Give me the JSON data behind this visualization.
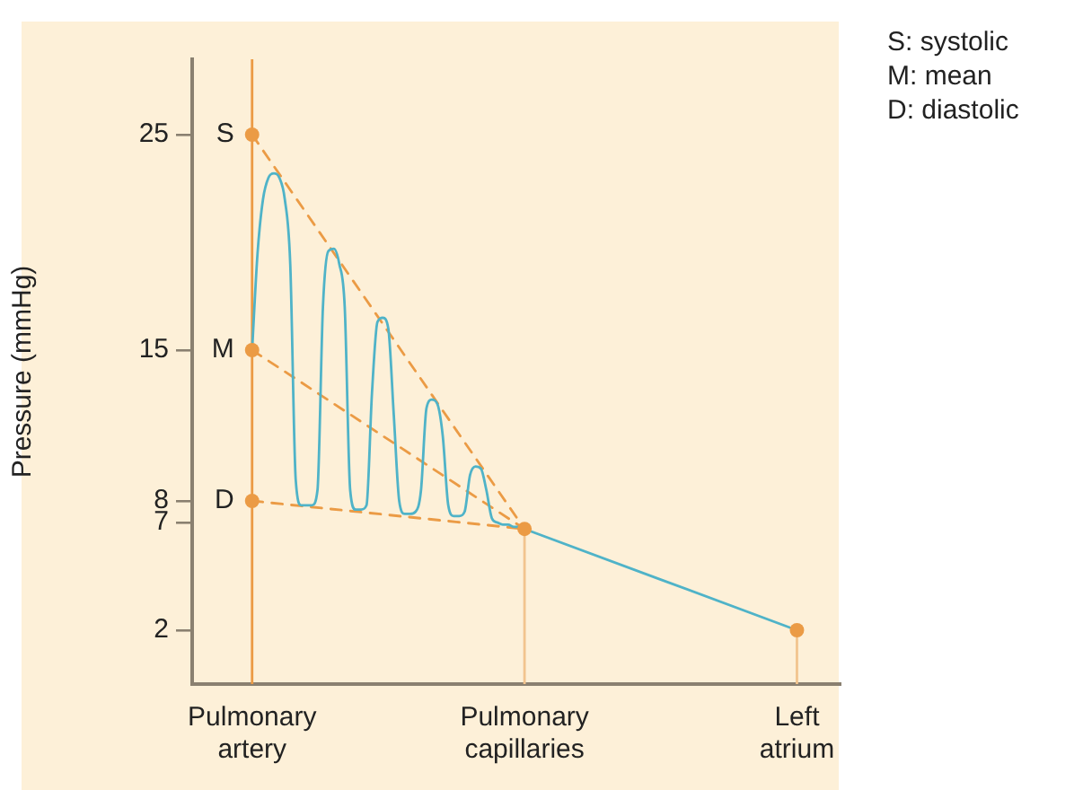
{
  "chart_data": {
    "type": "line",
    "ylabel": "Pressure (mmHg)",
    "categories": [
      "Pulmonary artery",
      null,
      null,
      null,
      null,
      null,
      null,
      null,
      null,
      null,
      null,
      null,
      null,
      null,
      null,
      null,
      null,
      null,
      null,
      null,
      null,
      null,
      null,
      null,
      null,
      null,
      null,
      null,
      null,
      null,
      null,
      null,
      null,
      null,
      null,
      null,
      null,
      null,
      null,
      null,
      null,
      null,
      null,
      null,
      null,
      null,
      null,
      null,
      null,
      null,
      "Pulmonary capillaries",
      null,
      null,
      null,
      null,
      null,
      null,
      null,
      null,
      null,
      null,
      null,
      null,
      null,
      null,
      null,
      null,
      null,
      null,
      null,
      null,
      null,
      null,
      null,
      null,
      null,
      null,
      null,
      null,
      null,
      null,
      null,
      null,
      null,
      null,
      null,
      null,
      null,
      null,
      null,
      null,
      null,
      null,
      null,
      null,
      null,
      null,
      null,
      null,
      null,
      "Left atrium"
    ],
    "ylim": [
      -0.5,
      28.5
    ],
    "yticks": [
      2,
      7,
      8,
      15,
      25
    ],
    "grid": false,
    "legend": false,
    "series": [
      {
        "type": "line",
        "color": "#eb9b45",
        "line_style": "dashed",
        "marker": "none",
        "values": [
          25,
          null,
          null,
          null,
          null,
          null,
          null,
          null,
          null,
          null,
          null,
          null,
          null,
          null,
          null,
          null,
          null,
          null,
          null,
          null,
          null,
          null,
          null,
          null,
          null,
          null,
          null,
          null,
          null,
          null,
          null,
          null,
          null,
          null,
          null,
          null,
          null,
          null,
          null,
          null,
          null,
          null,
          null,
          null,
          null,
          null,
          null,
          null,
          null,
          null,
          6.7,
          null,
          null,
          null,
          null,
          null,
          null,
          null,
          null,
          null,
          null,
          null,
          null,
          null,
          null,
          null,
          null,
          null,
          null,
          null,
          null,
          null,
          null,
          null,
          null,
          null,
          null,
          null,
          null,
          null,
          null,
          null,
          null,
          null,
          null,
          null,
          null,
          null,
          null,
          null,
          null,
          null,
          null,
          null,
          null,
          null,
          null,
          null,
          null,
          null,
          null
        ]
      },
      {
        "type": "line",
        "color": "#eb9b45",
        "line_style": "dashed",
        "marker": "none",
        "values": [
          15,
          null,
          null,
          null,
          null,
          null,
          null,
          null,
          null,
          null,
          null,
          null,
          null,
          null,
          null,
          null,
          null,
          null,
          null,
          null,
          null,
          null,
          null,
          null,
          null,
          null,
          null,
          null,
          null,
          null,
          null,
          null,
          null,
          null,
          null,
          null,
          null,
          null,
          null,
          null,
          null,
          null,
          null,
          null,
          null,
          null,
          null,
          null,
          null,
          null,
          6.7,
          null,
          null,
          null,
          null,
          null,
          null,
          null,
          null,
          null,
          null,
          null,
          null,
          null,
          null,
          null,
          null,
          null,
          null,
          null,
          null,
          null,
          null,
          null,
          null,
          null,
          null,
          null,
          null,
          null,
          null,
          null,
          null,
          null,
          null,
          null,
          null,
          null,
          null,
          null,
          null,
          null,
          null,
          null,
          null,
          null,
          null,
          null,
          null,
          null,
          null
        ]
      },
      {
        "type": "line",
        "color": "#eb9b45",
        "line_style": "dashed",
        "marker": "none",
        "values": [
          8,
          null,
          null,
          null,
          null,
          null,
          null,
          null,
          null,
          null,
          null,
          null,
          null,
          null,
          null,
          null,
          null,
          null,
          null,
          null,
          null,
          null,
          null,
          null,
          null,
          null,
          null,
          null,
          null,
          null,
          null,
          null,
          null,
          null,
          null,
          null,
          null,
          null,
          null,
          null,
          null,
          null,
          null,
          null,
          null,
          null,
          null,
          null,
          null,
          null,
          6.7,
          null,
          null,
          null,
          null,
          null,
          null,
          null,
          null,
          null,
          null,
          null,
          null,
          null,
          null,
          null,
          null,
          null,
          null,
          null,
          null,
          null,
          null,
          null,
          null,
          null,
          null,
          null,
          null,
          null,
          null,
          null,
          null,
          null,
          null,
          null,
          null,
          null,
          null,
          null,
          null,
          null,
          null,
          null,
          null,
          null,
          null,
          null,
          null,
          null,
          null
        ]
      },
      {
        "type": "line",
        "color": "#4fb3c8",
        "line_style": "solid",
        "marker": "none",
        "values": [
          15,
          19.5,
          22,
          23,
          23.2,
          23,
          22,
          19,
          9,
          7.8,
          7.8,
          7.8,
          8.5,
          17,
          19.6,
          19.7,
          19,
          17,
          8.5,
          7.6,
          7.6,
          7.8,
          13,
          16.3,
          16.5,
          16,
          12,
          8,
          7.4,
          7.4,
          7.5,
          8.5,
          12.3,
          12.7,
          12.5,
          11,
          7.8,
          7.3,
          7.3,
          7.5,
          9.2,
          9.6,
          9.5,
          8.5,
          7.2,
          7,
          6.9,
          6.9,
          6.8,
          6.8,
          6.7,
          null,
          null,
          null,
          null,
          null,
          null,
          null,
          null,
          null,
          null,
          null,
          null,
          null,
          null,
          null,
          null,
          null,
          null,
          null,
          null,
          null,
          null,
          null,
          null,
          null,
          null,
          null,
          null,
          null,
          null,
          null,
          null,
          null,
          null,
          null,
          null,
          null,
          null,
          null,
          null,
          null,
          null,
          null,
          null,
          null,
          null,
          null,
          null,
          null,
          null
        ]
      },
      {
        "type": "line",
        "color": "#4fb3c8",
        "line_style": "solid",
        "marker": "none",
        "values": [
          null,
          null,
          null,
          null,
          null,
          null,
          null,
          null,
          null,
          null,
          null,
          null,
          null,
          null,
          null,
          null,
          null,
          null,
          null,
          null,
          null,
          null,
          null,
          null,
          null,
          null,
          null,
          null,
          null,
          null,
          null,
          null,
          null,
          null,
          null,
          null,
          null,
          null,
          null,
          null,
          null,
          null,
          null,
          null,
          null,
          null,
          null,
          null,
          null,
          null,
          6.7,
          null,
          null,
          null,
          null,
          null,
          null,
          null,
          null,
          null,
          null,
          null,
          null,
          null,
          null,
          null,
          null,
          null,
          null,
          null,
          null,
          null,
          null,
          null,
          null,
          null,
          null,
          null,
          null,
          null,
          null,
          null,
          null,
          null,
          null,
          null,
          null,
          null,
          null,
          null,
          null,
          null,
          null,
          null,
          null,
          null,
          null,
          null,
          null,
          null,
          2
        ]
      },
      {
        "type": "line",
        "color": "#f2c48e",
        "line_style": "solid",
        "marker": "none",
        "x": [
          "Pulmonary capillaries",
          "Pulmonary capillaries"
        ],
        "values": [
          -0.5,
          6.7
        ]
      },
      {
        "type": "line",
        "color": "#f2c48e",
        "line_style": "solid",
        "marker": "none",
        "x": [
          "Left atrium",
          "Left atrium"
        ],
        "values": [
          -0.5,
          2
        ]
      },
      {
        "type": "scatter",
        "color": "#eb9b45",
        "marker": "circle",
        "x": [
          "Pulmonary artery",
          "Pulmonary artery",
          "Pulmonary artery",
          "Pulmonary capillaries",
          "Left atrium"
        ],
        "values": [
          25,
          15,
          8,
          6.7,
          2
        ]
      }
    ],
    "ref_lines": [
      {
        "axis": "x",
        "value": "Pulmonary artery",
        "color": "#eb9b45"
      }
    ],
    "annotations": [
      {
        "text": "S",
        "x": "Pulmonary artery",
        "y": 25
      },
      {
        "text": "M",
        "x": "Pulmonary artery",
        "y": 15
      },
      {
        "text": "D",
        "x": "Pulmonary artery",
        "y": 8
      },
      "S: systolic",
      "M: mean",
      "D: diastolic"
    ]
  }
}
